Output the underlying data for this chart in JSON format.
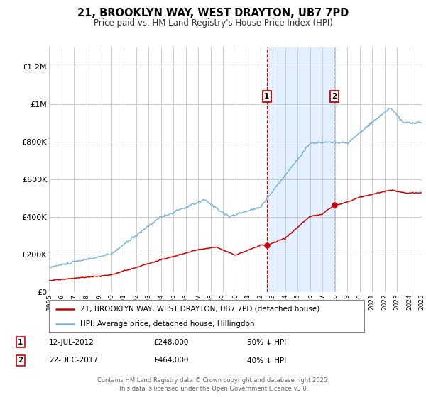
{
  "title": "21, BROOKLYN WAY, WEST DRAYTON, UB7 7PD",
  "subtitle": "Price paid vs. HM Land Registry's House Price Index (HPI)",
  "ylabel_ticks": [
    "£0",
    "£200K",
    "£400K",
    "£600K",
    "£800K",
    "£1M",
    "£1.2M"
  ],
  "ytick_values": [
    0,
    200000,
    400000,
    600000,
    800000,
    1000000,
    1200000
  ],
  "ylim": [
    0,
    1300000
  ],
  "year_start": 1995,
  "year_end": 2025,
  "sale1_date": 2012.53,
  "sale1_price": 248000,
  "sale2_date": 2017.98,
  "sale2_price": 464000,
  "hpi_color": "#7ab3d9",
  "price_color": "#cc0000",
  "bg_color": "#ffffff",
  "grid_color": "#cccccc",
  "shade_color": "#ddeeff",
  "legend_label_price": "21, BROOKLYN WAY, WEST DRAYTON, UB7 7PD (detached house)",
  "legend_label_hpi": "HPI: Average price, detached house, Hillingdon",
  "sale1_label": "1",
  "sale2_label": "2",
  "sale1_info": "12-JUL-2012",
  "sale1_amount": "£248,000",
  "sale1_hpi": "50% ↓ HPI",
  "sale2_info": "22-DEC-2017",
  "sale2_amount": "£464,000",
  "sale2_hpi": "40% ↓ HPI",
  "footer": "Contains HM Land Registry data © Crown copyright and database right 2025.\nThis data is licensed under the Open Government Licence v3.0."
}
